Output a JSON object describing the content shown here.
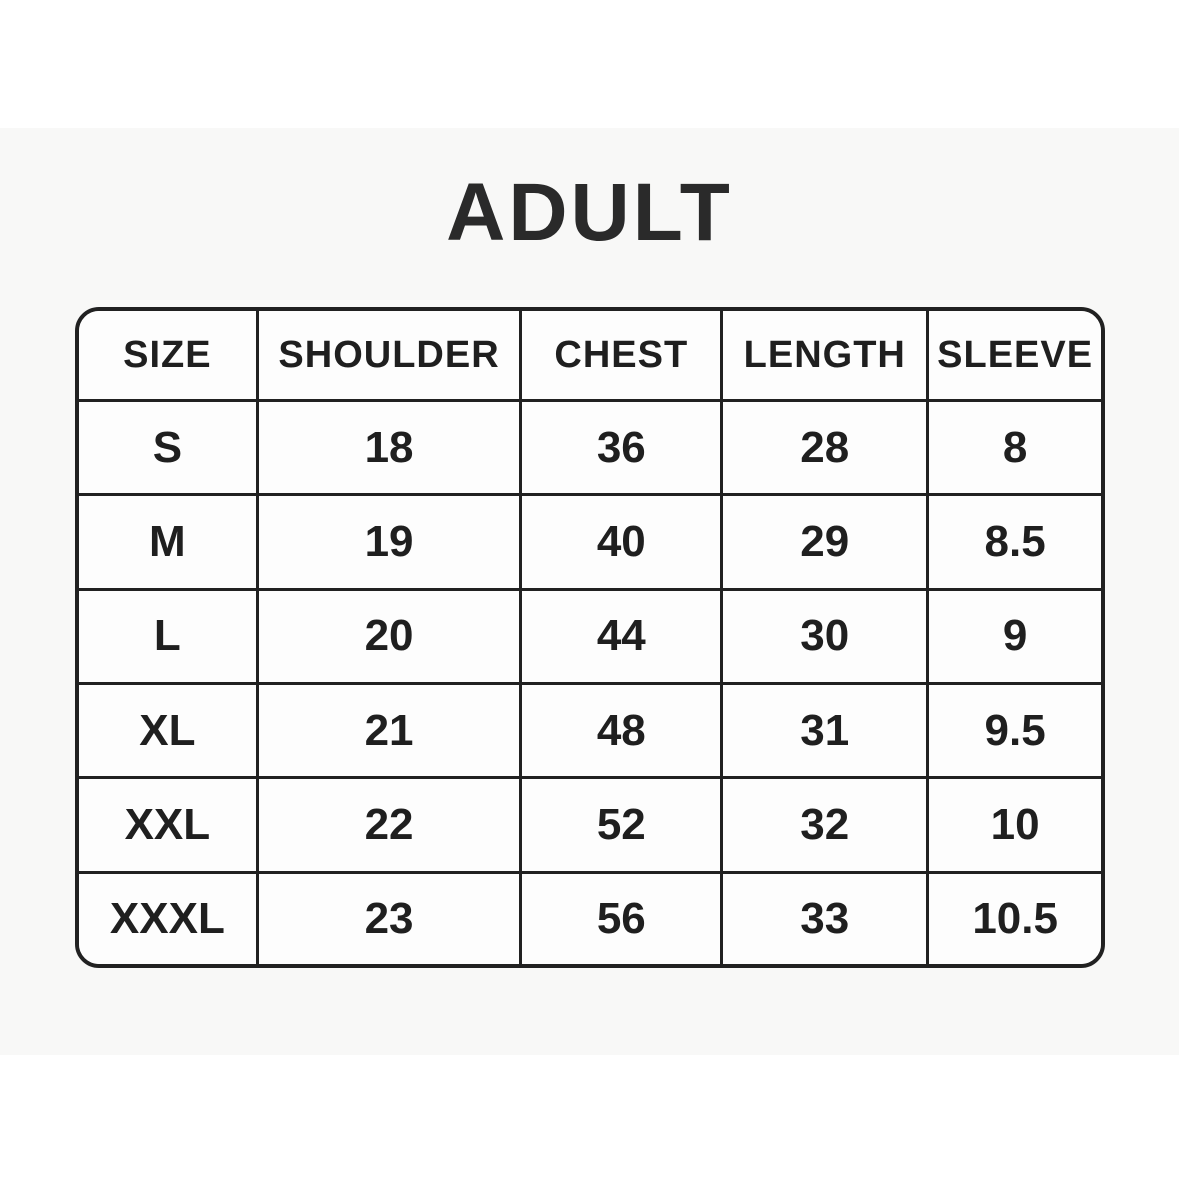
{
  "page": {
    "canvas_background": "#ffffff",
    "photo_background": "#f8f8f7"
  },
  "title": "ADULT",
  "chart_data": {
    "type": "table",
    "title": "ADULT",
    "columns": [
      "SIZE",
      "SHOULDER",
      "CHEST",
      "LENGTH",
      "SLEEVE"
    ],
    "rows": [
      [
        "S",
        "18",
        "36",
        "28",
        "8"
      ],
      [
        "M",
        "19",
        "40",
        "29",
        "8.5"
      ],
      [
        "L",
        "20",
        "44",
        "30",
        "9"
      ],
      [
        "XL",
        "21",
        "48",
        "31",
        "9.5"
      ],
      [
        "XXL",
        "22",
        "52",
        "32",
        "10"
      ],
      [
        "XXXL",
        "23",
        "56",
        "33",
        "10.5"
      ]
    ],
    "layout": {
      "grid": true,
      "rounded_outer_corners": true,
      "header_position": "top"
    }
  },
  "colors": {
    "border": "#212121",
    "text": "#1f1f1f",
    "cell_background": "#fdfdfd",
    "title_text": "#2a2a2a"
  }
}
